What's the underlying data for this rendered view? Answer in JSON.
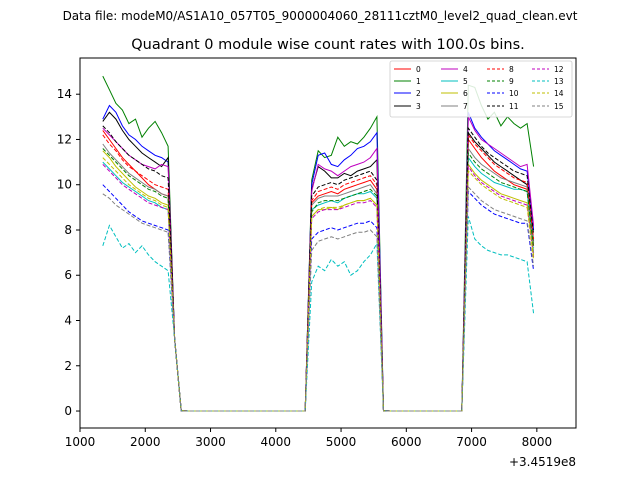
{
  "suptitle": "Data file: modeM0/AS1A10_057T05_9000004060_28111cztM0_level2_quad_clean.evt",
  "chart_data": {
    "type": "line",
    "title": "Quadrant 0 module wise count rates with 100.0s bins.",
    "xlabel": "",
    "ylabel": "",
    "x_offset_label": "+3.4519e8",
    "xlim": [
      1000,
      8600
    ],
    "ylim": [
      -0.75,
      15.6
    ],
    "xticks": [
      1000,
      2000,
      3000,
      4000,
      5000,
      6000,
      7000,
      8000
    ],
    "yticks": [
      0,
      2,
      4,
      6,
      8,
      10,
      12,
      14
    ],
    "x": [
      1350,
      1450,
      1550,
      1650,
      1750,
      1850,
      1950,
      2050,
      2150,
      2250,
      2350,
      2450,
      2550,
      2650,
      2750,
      2850,
      2950,
      3050,
      3150,
      3250,
      3350,
      3450,
      3550,
      3650,
      3750,
      3850,
      3950,
      4050,
      4150,
      4250,
      4350,
      4450,
      4550,
      4650,
      4750,
      4850,
      4950,
      5050,
      5150,
      5250,
      5350,
      5450,
      5550,
      5650,
      5750,
      5850,
      5950,
      6050,
      6150,
      6250,
      6350,
      6450,
      6550,
      6650,
      6750,
      6850,
      6950,
      7050,
      7150,
      7250,
      7350,
      7450,
      7550,
      7650,
      7750,
      7850,
      7950,
      8050,
      8150,
      8250
    ],
    "legend": {
      "position": "top-right",
      "ncol": 4
    },
    "series": [
      {
        "name": "0",
        "color": "#ff0000",
        "dashed": false,
        "base": [
          12.4,
          12.0,
          11.6,
          11.2,
          10.9,
          10.6,
          10.3,
          10.0,
          9.8,
          9.6,
          9.5
        ],
        "mid": [
          9.2,
          9.5,
          9.6,
          9.7,
          9.6,
          9.8,
          9.9,
          10.0,
          10.1,
          10.2,
          9.8
        ],
        "late": [
          12.0,
          11.6,
          11.2,
          10.9,
          10.6,
          10.4,
          10.2,
          10.0,
          9.9,
          9.8,
          7.3
        ]
      },
      {
        "name": "1",
        "color": "#008000",
        "dashed": false,
        "base": [
          14.8,
          14.2,
          13.6,
          13.3,
          12.7,
          12.9,
          12.1,
          12.5,
          12.8,
          12.3,
          11.7
        ],
        "mid": [
          10.2,
          11.5,
          11.2,
          11.3,
          12.1,
          11.7,
          11.9,
          11.8,
          12.1,
          12.5,
          13.0
        ],
        "late": [
          14.4,
          14.3,
          13.5,
          12.9,
          13.2,
          12.6,
          13.0,
          12.7,
          12.5,
          12.7,
          10.8
        ]
      },
      {
        "name": "2",
        "color": "#0000ff",
        "dashed": false,
        "base": [
          12.9,
          13.5,
          13.2,
          12.6,
          12.2,
          12.0,
          11.7,
          11.5,
          11.3,
          11.2,
          11.0
        ],
        "mid": [
          10.0,
          11.3,
          11.4,
          10.9,
          10.8,
          11.1,
          11.3,
          11.6,
          11.7,
          11.9,
          12.3
        ],
        "late": [
          13.2,
          12.5,
          12.1,
          11.8,
          11.5,
          11.3,
          11.1,
          10.9,
          10.7,
          10.6,
          8.0
        ]
      },
      {
        "name": "3",
        "color": "#000000",
        "dashed": false,
        "base": [
          12.8,
          13.2,
          12.9,
          12.4,
          12.0,
          11.7,
          11.4,
          11.2,
          11.0,
          10.8,
          11.2
        ],
        "mid": [
          9.8,
          10.8,
          10.6,
          10.3,
          10.3,
          10.5,
          10.4,
          10.6,
          10.7,
          10.8,
          11.1
        ],
        "late": [
          12.3,
          11.9,
          11.6,
          11.3,
          11.0,
          10.8,
          10.6,
          10.4,
          10.2,
          10.0,
          7.5
        ]
      },
      {
        "name": "4",
        "color": "#bf00bf",
        "dashed": false,
        "base": [
          12.5,
          12.2,
          11.9,
          11.6,
          11.3,
          11.1,
          10.9,
          10.8,
          10.7,
          10.9,
          10.8
        ],
        "mid": [
          9.7,
          10.9,
          10.7,
          10.6,
          10.4,
          10.6,
          10.8,
          10.9,
          11.0,
          11.2,
          11.6
        ],
        "late": [
          13.0,
          12.4,
          12.0,
          11.8,
          11.6,
          11.4,
          11.2,
          11.0,
          10.8,
          10.9,
          8.2
        ]
      },
      {
        "name": "5",
        "color": "#00bfbf",
        "dashed": false,
        "base": [
          11.0,
          10.7,
          10.4,
          10.1,
          9.9,
          9.7,
          9.5,
          9.3,
          9.2,
          9.0,
          8.9
        ],
        "mid": [
          8.9,
          9.1,
          9.2,
          9.3,
          9.2,
          9.4,
          9.5,
          9.6,
          9.6,
          9.7,
          9.4
        ],
        "late": [
          11.2,
          10.8,
          10.5,
          10.3,
          10.1,
          10.0,
          9.9,
          9.8,
          9.8,
          9.7,
          7.0
        ]
      },
      {
        "name": "6",
        "color": "#bfbf00",
        "dashed": false,
        "base": [
          11.5,
          11.2,
          10.8,
          10.5,
          10.2,
          9.9,
          9.7,
          9.5,
          9.4,
          9.2,
          9.1
        ],
        "mid": [
          8.6,
          8.9,
          8.9,
          9.0,
          8.9,
          9.1,
          9.2,
          9.3,
          9.3,
          9.4,
          9.1
        ],
        "late": [
          10.9,
          10.5,
          10.2,
          10.0,
          9.8,
          9.6,
          9.5,
          9.4,
          9.3,
          9.2,
          6.9
        ]
      },
      {
        "name": "7",
        "color": "#808080",
        "dashed": false,
        "base": [
          11.8,
          11.4,
          11.1,
          10.8,
          10.5,
          10.3,
          10.1,
          9.9,
          9.8,
          9.6,
          9.5
        ],
        "mid": [
          9.1,
          9.4,
          9.5,
          9.5,
          9.5,
          9.6,
          9.7,
          9.8,
          9.9,
          10.0,
          9.6
        ],
        "late": [
          11.6,
          11.2,
          10.9,
          10.7,
          10.5,
          10.3,
          10.2,
          10.1,
          10.0,
          9.9,
          7.4
        ]
      },
      {
        "name": "8",
        "color": "#ff0000",
        "dashed": true,
        "base": [
          12.2,
          11.8,
          11.5,
          11.1,
          10.8,
          10.6,
          10.4,
          10.2,
          10.0,
          9.9,
          9.8
        ],
        "mid": [
          9.3,
          9.7,
          9.8,
          9.9,
          9.8,
          10.0,
          10.1,
          10.2,
          10.3,
          10.4,
          10.0
        ],
        "late": [
          12.2,
          11.8,
          11.5,
          11.2,
          10.9,
          10.7,
          10.5,
          10.3,
          10.2,
          10.1,
          7.6
        ]
      },
      {
        "name": "9",
        "color": "#008000",
        "dashed": true,
        "base": [
          11.6,
          11.3,
          11.0,
          10.7,
          10.4,
          10.2,
          10.0,
          9.8,
          9.7,
          9.5,
          9.4
        ],
        "mid": [
          8.8,
          9.2,
          9.3,
          9.3,
          9.3,
          9.4,
          9.5,
          9.6,
          9.7,
          9.8,
          9.5
        ],
        "late": [
          11.4,
          11.0,
          10.7,
          10.5,
          10.3,
          10.1,
          10.0,
          9.9,
          9.8,
          9.7,
          7.2
        ]
      },
      {
        "name": "10",
        "color": "#0000ff",
        "dashed": true,
        "base": [
          10.0,
          9.7,
          9.4,
          9.1,
          8.8,
          8.6,
          8.4,
          8.3,
          8.2,
          8.1,
          8.0
        ],
        "mid": [
          7.6,
          7.9,
          8.0,
          8.1,
          8.0,
          8.1,
          8.2,
          8.3,
          8.3,
          8.4,
          8.1
        ],
        "late": [
          9.7,
          9.4,
          9.1,
          8.9,
          8.7,
          8.6,
          8.5,
          8.4,
          8.3,
          8.3,
          6.2
        ]
      },
      {
        "name": "11",
        "color": "#000000",
        "dashed": true,
        "base": [
          12.6,
          12.3,
          11.9,
          11.6,
          11.3,
          11.1,
          10.9,
          10.7,
          10.6,
          10.4,
          10.3
        ],
        "mid": [
          9.5,
          9.9,
          10.0,
          10.1,
          10.0,
          10.2,
          10.3,
          10.4,
          10.5,
          10.6,
          10.2
        ],
        "late": [
          12.5,
          12.1,
          11.7,
          11.4,
          11.2,
          11.0,
          10.8,
          10.6,
          10.5,
          10.4,
          7.8
        ]
      },
      {
        "name": "12",
        "color": "#bf00bf",
        "dashed": true,
        "base": [
          10.9,
          10.6,
          10.3,
          10.0,
          9.8,
          9.6,
          9.4,
          9.2,
          9.1,
          9.0,
          8.9
        ],
        "mid": [
          8.5,
          8.8,
          8.9,
          8.9,
          8.9,
          9.0,
          9.1,
          9.2,
          9.2,
          9.3,
          9.0
        ],
        "late": [
          10.8,
          10.4,
          10.1,
          9.9,
          9.7,
          9.5,
          9.4,
          9.3,
          9.2,
          9.1,
          6.8
        ]
      },
      {
        "name": "13",
        "color": "#00bfbf",
        "dashed": true,
        "base": [
          7.3,
          8.2,
          7.7,
          7.2,
          7.4,
          7.0,
          7.3,
          6.9,
          6.6,
          6.4,
          6.2
        ],
        "mid": [
          5.7,
          6.4,
          6.2,
          6.7,
          6.4,
          6.6,
          6.0,
          6.2,
          6.6,
          6.9,
          7.4
        ],
        "late": [
          8.6,
          7.6,
          7.3,
          7.1,
          7.0,
          6.9,
          6.9,
          6.8,
          6.7,
          6.6,
          4.3
        ]
      },
      {
        "name": "14",
        "color": "#bfbf00",
        "dashed": true,
        "base": [
          11.2,
          10.9,
          10.6,
          10.3,
          10.0,
          9.8,
          9.6,
          9.4,
          9.3,
          9.1,
          9.0
        ],
        "mid": [
          8.6,
          8.9,
          9.0,
          9.0,
          9.0,
          9.1,
          9.2,
          9.3,
          9.3,
          9.4,
          9.1
        ],
        "late": [
          10.6,
          10.3,
          10.0,
          9.8,
          9.6,
          9.4,
          9.3,
          9.2,
          9.1,
          9.0,
          6.7
        ]
      },
      {
        "name": "15",
        "color": "#808080",
        "dashed": true,
        "base": [
          9.6,
          9.4,
          9.1,
          8.9,
          8.7,
          8.5,
          8.3,
          8.2,
          8.1,
          8.0,
          7.9
        ],
        "mid": [
          7.1,
          7.5,
          7.6,
          7.7,
          7.6,
          7.7,
          7.8,
          7.9,
          7.9,
          8.0,
          7.7
        ],
        "late": [
          9.9,
          9.6,
          9.3,
          9.1,
          8.9,
          8.8,
          8.7,
          8.6,
          8.5,
          8.4,
          6.4
        ]
      }
    ]
  }
}
